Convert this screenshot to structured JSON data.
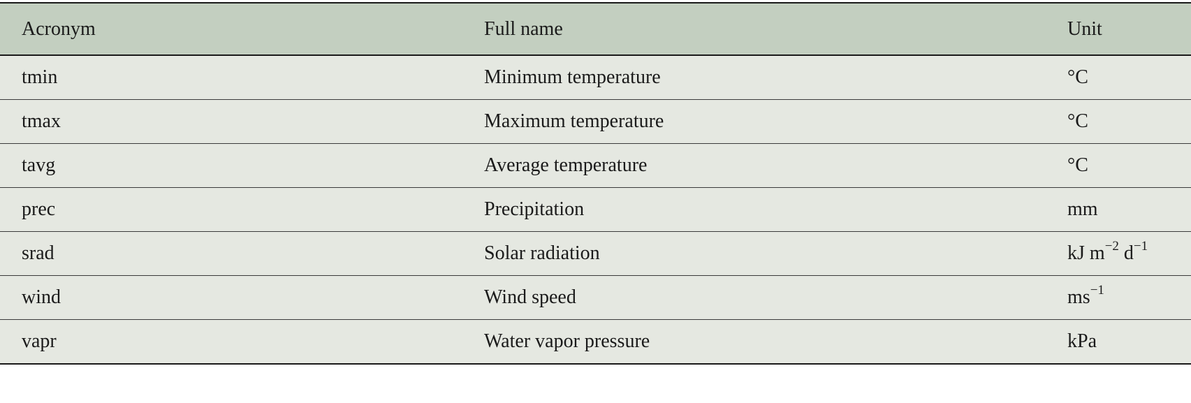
{
  "table": {
    "headers": {
      "acronym": "Acronym",
      "full_name": "Full name",
      "unit": "Unit"
    },
    "rows": [
      {
        "acronym": "tmin",
        "full_name": "Minimum temperature",
        "unit": "°C"
      },
      {
        "acronym": "tmax",
        "full_name": "Maximum temperature",
        "unit": "°C"
      },
      {
        "acronym": "tavg",
        "full_name": "Average temperature",
        "unit": "°C"
      },
      {
        "acronym": "prec",
        "full_name": "Precipitation",
        "unit": "mm"
      },
      {
        "acronym": "srad",
        "full_name": "Solar radiation",
        "unit_parts": {
          "a": "kJ m",
          "a_sup": "−2",
          "b": " d",
          "b_sup": "−1"
        }
      },
      {
        "acronym": "wind",
        "full_name": "Wind speed",
        "unit_parts": {
          "a": "ms",
          "a_sup": "−1"
        }
      },
      {
        "acronym": "vapr",
        "full_name": "Water vapor pressure",
        "unit": "kPa"
      }
    ]
  }
}
